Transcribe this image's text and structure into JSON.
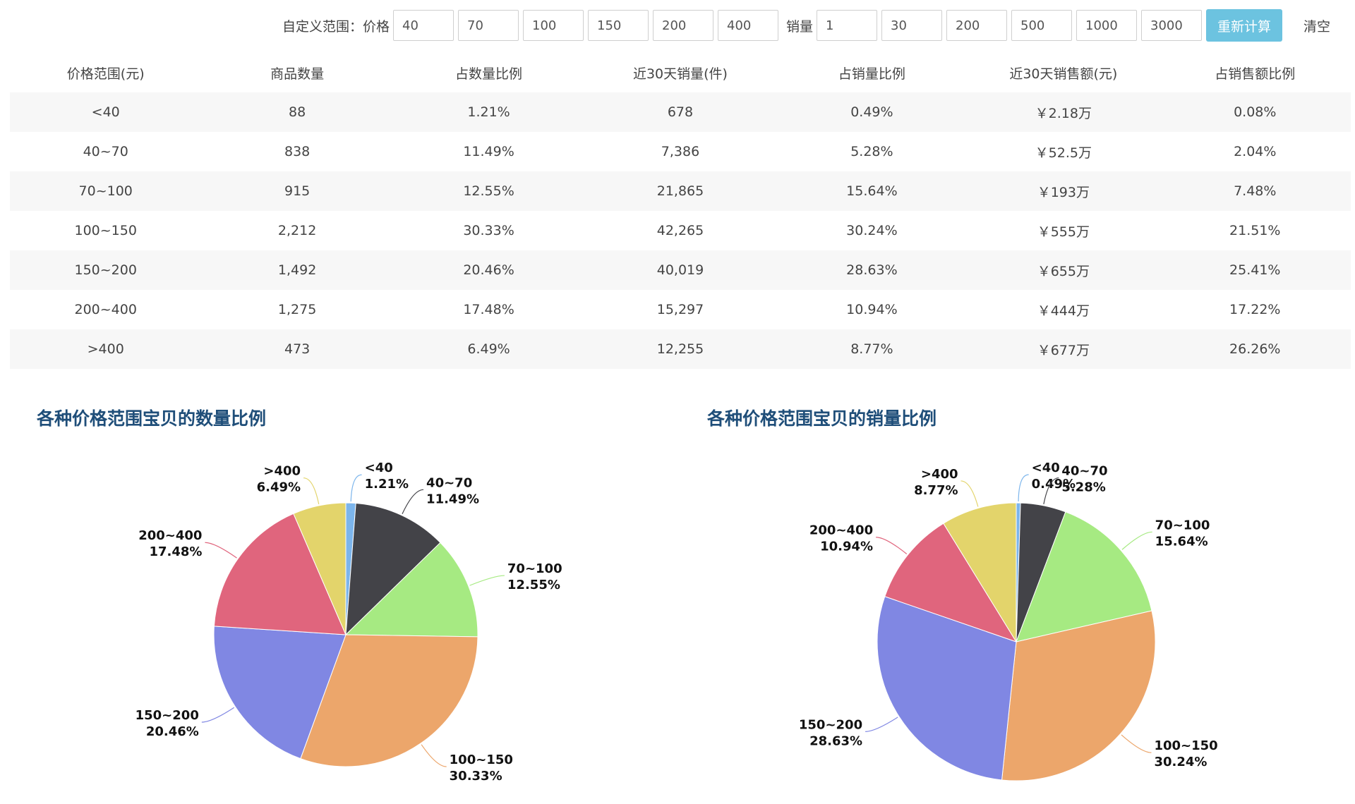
{
  "toolbar": {
    "custom_range_label": "自定义范围：价格",
    "price_breaks": [
      "40",
      "70",
      "100",
      "150",
      "200",
      "400"
    ],
    "sales_label": "销量",
    "sales_breaks": [
      "1",
      "30",
      "200",
      "500",
      "1000",
      "3000"
    ],
    "recalc_label": "重新计算",
    "clear_label": "清空"
  },
  "table": {
    "headers": [
      "价格范围(元)",
      "商品数量",
      "占数量比例",
      "近30天销量(件)",
      "占销量比例",
      "近30天销售额(元)",
      "占销售额比例"
    ],
    "rows": [
      [
        "<40",
        "88",
        "1.21%",
        "678",
        "0.49%",
        "￥2.18万",
        "0.08%"
      ],
      [
        "40~70",
        "838",
        "11.49%",
        "7,386",
        "5.28%",
        "￥52.5万",
        "2.04%"
      ],
      [
        "70~100",
        "915",
        "12.55%",
        "21,865",
        "15.64%",
        "￥193万",
        "7.48%"
      ],
      [
        "100~150",
        "2,212",
        "30.33%",
        "42,265",
        "30.24%",
        "￥555万",
        "21.51%"
      ],
      [
        "150~200",
        "1,492",
        "20.46%",
        "40,019",
        "28.63%",
        "￥655万",
        "25.41%"
      ],
      [
        "200~400",
        "1,275",
        "17.48%",
        "15,297",
        "10.94%",
        "￥444万",
        "17.22%"
      ],
      [
        ">400",
        "473",
        "6.49%",
        "12,255",
        "8.77%",
        "￥677万",
        "26.26%"
      ]
    ]
  },
  "colors": {
    "accent": "#6cc3e0",
    "chart_title": "#1f4e79",
    "row_stripe": "#f7f7f7"
  },
  "chart_data": [
    {
      "type": "pie",
      "title": "各种价格范围宝贝的数量比例",
      "categories": [
        "<40",
        "40~70",
        "70~100",
        "100~150",
        "150~200",
        "200~400",
        ">400"
      ],
      "values": [
        1.21,
        11.49,
        12.55,
        30.33,
        20.46,
        17.48,
        6.49
      ],
      "labels": [
        "1.21%",
        "11.49%",
        "12.55%",
        "30.33%",
        "20.46%",
        "17.48%",
        "6.49%"
      ],
      "colors": [
        "#7cb5ec",
        "#434348",
        "#a6ea82",
        "#eca66b",
        "#8087e3",
        "#e0657d",
        "#e3d46b"
      ]
    },
    {
      "type": "pie",
      "title": "各种价格范围宝贝的销量比例",
      "categories": [
        "<40",
        "40~70",
        "70~100",
        "100~150",
        "150~200",
        "200~400",
        ">400"
      ],
      "values": [
        0.49,
        5.28,
        15.64,
        30.24,
        28.63,
        10.94,
        8.77
      ],
      "labels": [
        "0.49%",
        "5.28%",
        "15.64%",
        "30.24%",
        "28.63%",
        "10.94%",
        "8.77%"
      ],
      "colors": [
        "#7cb5ec",
        "#434348",
        "#a6ea82",
        "#eca66b",
        "#8087e3",
        "#e0657d",
        "#e3d46b"
      ]
    }
  ]
}
